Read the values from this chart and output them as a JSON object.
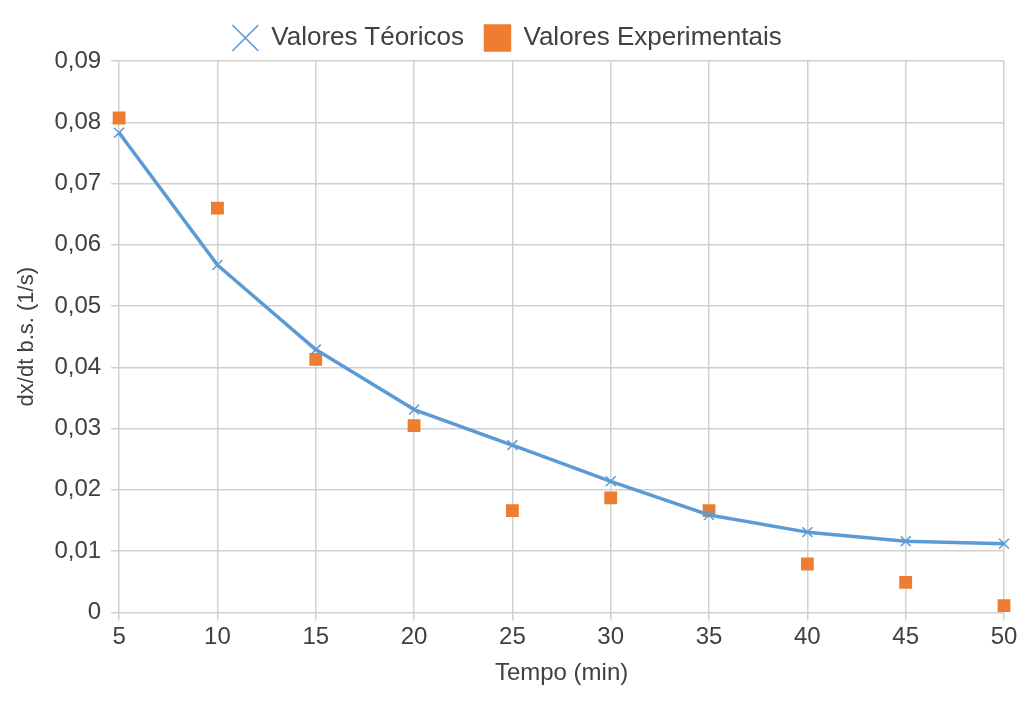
{
  "chart_data": {
    "type": "line",
    "xlabel": "Tempo (min)",
    "ylabel": "dx/dt b.s. (1/s)",
    "x": [
      5,
      10,
      15,
      20,
      25,
      30,
      35,
      40,
      45,
      50
    ],
    "series": [
      {
        "name": "Valores Téoricos",
        "color": "#5b9bd5",
        "marker": "cross",
        "values": [
          0.0783,
          0.0567,
          0.0429,
          0.0331,
          0.0273,
          0.0214,
          0.0159,
          0.0131,
          0.0116,
          0.0112
        ]
      },
      {
        "name": "Valores Experimentais",
        "type": "scatter",
        "color": "#ed7d31",
        "marker": "square",
        "values": [
          0.0807,
          0.066,
          0.0413,
          0.0305,
          0.0166,
          0.0187,
          0.0166,
          0.0079,
          0.0049,
          0.0011
        ]
      }
    ],
    "xlim": [
      5,
      50
    ],
    "xticks": [
      5,
      10,
      15,
      20,
      25,
      30,
      35,
      40,
      45,
      50
    ],
    "ylim": [
      0,
      0.09
    ],
    "yticks": [
      0,
      {
        "value": 0.01,
        "label": "0,01"
      },
      {
        "value": 0.02,
        "label": "0,02"
      },
      {
        "value": 0.03,
        "label": "0,03"
      },
      {
        "value": 0.04,
        "label": "0,04"
      },
      {
        "value": 0.05,
        "label": "0,05"
      },
      {
        "value": 0.06,
        "label": "0,06"
      },
      {
        "value": 0.07,
        "label": "0,07"
      },
      {
        "value": 0.08,
        "label": "0,08"
      },
      {
        "value": 0.09,
        "label": "0,09"
      }
    ],
    "grid": true,
    "legend": "top"
  }
}
